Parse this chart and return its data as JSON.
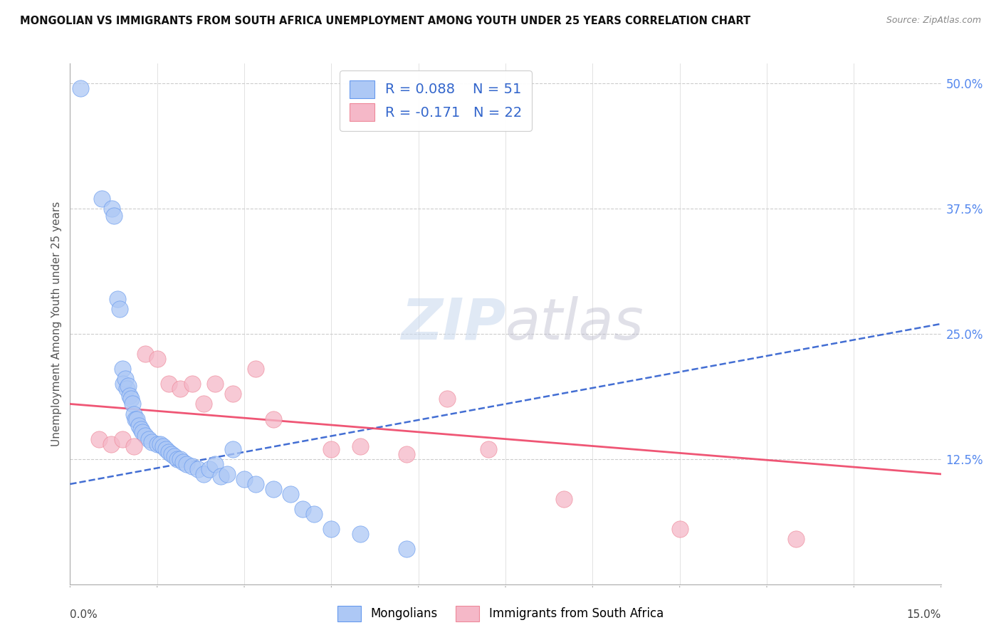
{
  "title": "MONGOLIAN VS IMMIGRANTS FROM SOUTH AFRICA UNEMPLOYMENT AMONG YOUTH UNDER 25 YEARS CORRELATION CHART",
  "source": "Source: ZipAtlas.com",
  "ylabel": "Unemployment Among Youth under 25 years",
  "xlim": [
    0.0,
    15.0
  ],
  "ylim": [
    0.0,
    52.0
  ],
  "yticks_right": [
    12.5,
    25.0,
    37.5,
    50.0
  ],
  "ytick_labels_right": [
    "12.5%",
    "25.0%",
    "37.5%",
    "50.0%"
  ],
  "legend_r1": "R = 0.088",
  "legend_n1": "N = 51",
  "legend_r2": "R = -0.171",
  "legend_n2": "N = 22",
  "blue_color": "#adc8f5",
  "pink_color": "#f5b8c8",
  "blue_edge": "#6699ee",
  "pink_edge": "#ee8899",
  "trend_blue": "#2255cc",
  "trend_pink": "#ee4466",
  "background": "#ffffff",
  "grid_color": "#cccccc",
  "mongolians_x": [
    0.18,
    0.55,
    0.72,
    0.75,
    0.82,
    0.85,
    0.9,
    0.92,
    0.95,
    0.98,
    1.0,
    1.02,
    1.05,
    1.08,
    1.1,
    1.12,
    1.15,
    1.18,
    1.22,
    1.25,
    1.3,
    1.35,
    1.4,
    1.5,
    1.55,
    1.6,
    1.65,
    1.7,
    1.75,
    1.8,
    1.85,
    1.9,
    1.95,
    2.0,
    2.1,
    2.2,
    2.3,
    2.4,
    2.5,
    2.6,
    2.7,
    2.8,
    3.0,
    3.2,
    3.5,
    3.8,
    4.0,
    4.2,
    4.5,
    5.0,
    5.8
  ],
  "mongolians_y": [
    49.5,
    38.5,
    37.5,
    36.8,
    28.5,
    27.5,
    21.5,
    20.0,
    20.5,
    19.5,
    19.8,
    18.8,
    18.5,
    18.0,
    17.0,
    16.5,
    16.5,
    15.8,
    15.5,
    15.2,
    14.8,
    14.5,
    14.2,
    14.0,
    14.0,
    13.8,
    13.5,
    13.2,
    13.0,
    12.8,
    12.5,
    12.5,
    12.2,
    12.0,
    11.8,
    11.5,
    11.0,
    11.5,
    12.0,
    10.8,
    11.0,
    13.5,
    10.5,
    10.0,
    9.5,
    9.0,
    7.5,
    7.0,
    5.5,
    5.0,
    3.5
  ],
  "sa_x": [
    0.5,
    0.7,
    0.9,
    1.1,
    1.3,
    1.5,
    1.7,
    1.9,
    2.1,
    2.3,
    2.5,
    2.8,
    3.2,
    3.5,
    4.5,
    5.0,
    5.8,
    6.5,
    7.2,
    8.5,
    10.5,
    12.5
  ],
  "sa_y": [
    14.5,
    14.0,
    14.5,
    13.8,
    23.0,
    22.5,
    20.0,
    19.5,
    20.0,
    18.0,
    20.0,
    19.0,
    21.5,
    16.5,
    13.5,
    13.8,
    13.0,
    18.5,
    13.5,
    8.5,
    5.5,
    4.5
  ]
}
